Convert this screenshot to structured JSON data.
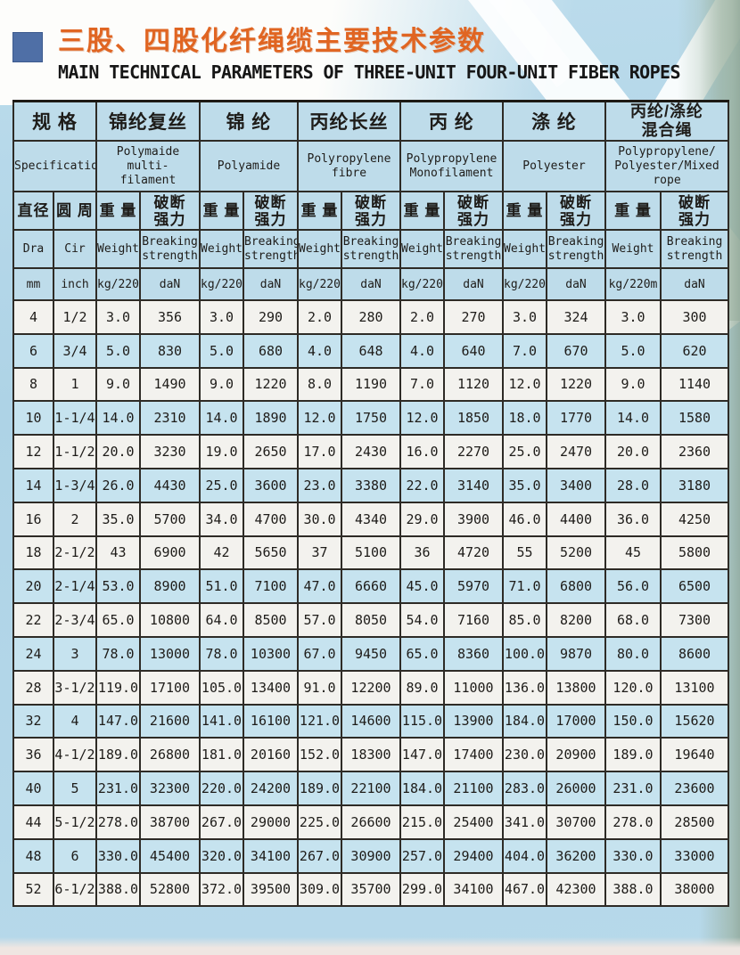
{
  "page": {
    "title_cn": "三股、四股化纤绳缆主要技术参数",
    "title_en": "MAIN TECHNICAL PARAMETERS OF THREE-UNIT FOUR-UNIT FIBER ROPES"
  },
  "colors": {
    "accent_orange_text": "#e5772b",
    "accent_orange_border": "#cf6a2c",
    "title_orange": "#e06522",
    "bullet_blue": "#4f6fa6",
    "header_blue": "#bedcea",
    "row_blue": "#c6e3ef",
    "row_white": "#f3f2ee",
    "grid_dark": "#2e2b26",
    "page_blue": "#aed3e6"
  },
  "table": {
    "groups": [
      {
        "cn": "规 格",
        "en": "Specification"
      },
      {
        "cn": "锦纶复丝",
        "en": "Polymaide multi-\nfilament"
      },
      {
        "cn": "锦 纶",
        "en": "Polyamide"
      },
      {
        "cn": "丙纶长丝",
        "en": "Polyropylene\nfibre"
      },
      {
        "cn": "丙 纶",
        "en": "Polypropylene\nMonofilament"
      },
      {
        "cn": "涤 纶",
        "en": "Polyester"
      },
      {
        "cn": "丙纶/涤纶\n混合绳",
        "en": "Polypropylene/\nPolyester/Mixed\nrope"
      }
    ],
    "sub_headers": {
      "dim_cn": [
        "直径",
        "圆 周"
      ],
      "dim_en": [
        "Dra",
        "Cir"
      ],
      "dim_unit": [
        "mm",
        "inch"
      ],
      "measure_cn": [
        "重 量",
        "破断\n强力"
      ],
      "measure_en": [
        "Weight",
        "Breaking\nstrength"
      ],
      "measure_unit": [
        "kg/220m",
        "daN"
      ]
    },
    "rows": [
      {
        "cells": [
          "4",
          "1/2",
          "3.0",
          "356",
          "3.0",
          "290",
          "2.0",
          "280",
          "2.0",
          "270",
          "3.0",
          "324",
          "3.0",
          "300"
        ]
      },
      {
        "cells": [
          "6",
          "3/4",
          "5.0",
          "830",
          "5.0",
          "680",
          "4.0",
          "648",
          "4.0",
          "640",
          "7.0",
          "670",
          "5.0",
          "620"
        ]
      },
      {
        "cells": [
          "8",
          "1",
          "9.0",
          "1490",
          "9.0",
          "1220",
          "8.0",
          "1190",
          "7.0",
          "1120",
          "12.0",
          "1220",
          "9.0",
          "1140"
        ]
      },
      {
        "cells": [
          "10",
          "1-1/4",
          "14.0",
          "2310",
          "14.0",
          "1890",
          "12.0",
          "1750",
          "12.0",
          "1850",
          "18.0",
          "1770",
          "14.0",
          "1580"
        ]
      },
      {
        "cells": [
          "12",
          "1-1/2",
          "20.0",
          "3230",
          "19.0",
          "2650",
          "17.0",
          "2430",
          "16.0",
          "2270",
          "25.0",
          "2470",
          "20.0",
          "2360"
        ]
      },
      {
        "cells": [
          "14",
          "1-3/4",
          "26.0",
          "4430",
          "25.0",
          "3600",
          "23.0",
          "3380",
          "22.0",
          "3140",
          "35.0",
          "3400",
          "28.0",
          "3180"
        ]
      },
      {
        "cells": [
          "16",
          "2",
          "35.0",
          "5700",
          "34.0",
          "4700",
          "30.0",
          "4340",
          "29.0",
          "3900",
          "46.0",
          "4400",
          "36.0",
          "4250"
        ]
      },
      {
        "cells": [
          "18",
          "2-1/2",
          "43",
          "6900",
          "42",
          "5650",
          "37",
          "5100",
          "36",
          "4720",
          "55",
          "5200",
          "45",
          "5800"
        ]
      },
      {
        "cells": [
          "20",
          "2-1/4",
          "53.0",
          "8900",
          "51.0",
          "7100",
          "47.0",
          "6660",
          "45.0",
          "5970",
          "71.0",
          "6800",
          "56.0",
          "6500"
        ]
      },
      {
        "cells": [
          "22",
          "2-3/4",
          "65.0",
          "10800",
          "64.0",
          "8500",
          "57.0",
          "8050",
          "54.0",
          "7160",
          "85.0",
          "8200",
          "68.0",
          "7300"
        ]
      },
      {
        "cells": [
          "24",
          "3",
          "78.0",
          "13000",
          "78.0",
          "10300",
          "67.0",
          "9450",
          "65.0",
          "8360",
          "100.0",
          "9870",
          "80.0",
          "8600"
        ]
      },
      {
        "cells": [
          "28",
          "3-1/2",
          "119.0",
          "17100",
          "105.0",
          "13400",
          "91.0",
          "12200",
          "89.0",
          "11000",
          "136.0",
          "13800",
          "120.0",
          "13100"
        ]
      },
      {
        "cells": [
          "32",
          "4",
          "147.0",
          "21600",
          "141.0",
          "16100",
          "121.0",
          "14600",
          "115.0",
          "13900",
          "184.0",
          "17000",
          "150.0",
          "15620"
        ]
      },
      {
        "cells": [
          "36",
          "4-1/2",
          "189.0",
          "26800",
          "181.0",
          "20160",
          "152.0",
          "18300",
          "147.0",
          "17400",
          "230.0",
          "20900",
          "189.0",
          "19640"
        ]
      },
      {
        "cells": [
          "40",
          "5",
          "231.0",
          "32300",
          "220.0",
          "24200",
          "189.0",
          "22100",
          "184.0",
          "21100",
          "283.0",
          "26000",
          "231.0",
          "23600"
        ]
      },
      {
        "cells": [
          "44",
          "5-1/2",
          "278.0",
          "38700",
          "267.0",
          "29000",
          "225.0",
          "26600",
          "215.0",
          "25400",
          "341.0",
          "30700",
          "278.0",
          "28500"
        ]
      },
      {
        "cells": [
          "48",
          "6",
          "330.0",
          "45400",
          "320.0",
          "34100",
          "267.0",
          "30900",
          "257.0",
          "29400",
          "404.0",
          "36200",
          "330.0",
          "33000"
        ]
      },
      {
        "cells": [
          "52",
          "6-1/2",
          "388.0",
          "52800",
          "372.0",
          "39500",
          "309.0",
          "35700",
          "299.0",
          "34100",
          "467.0",
          "42300",
          "388.0",
          "38000"
        ]
      }
    ]
  }
}
